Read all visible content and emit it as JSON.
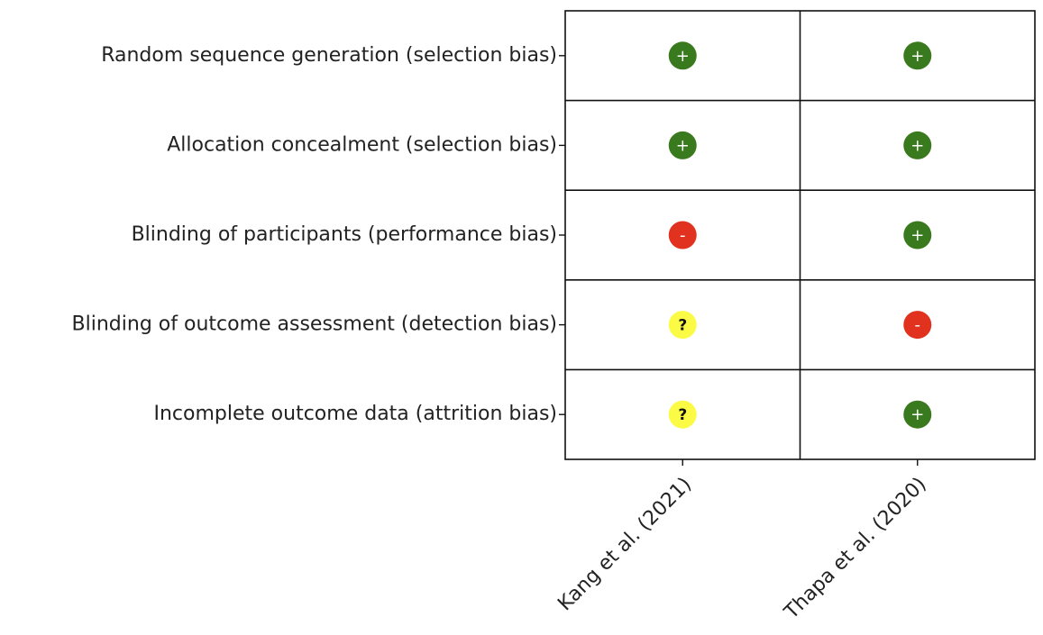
{
  "chart_data": {
    "type": "table",
    "rows": [
      "Random sequence generation (selection bias)",
      "Allocation concealment (selection bias)",
      "Blinding of participants (performance bias)",
      "Blinding of outcome assessment (detection bias)",
      "Incomplete outcome data (attrition bias)"
    ],
    "columns": [
      "Kang et al. (2021)",
      "Thapa et al. (2020)"
    ],
    "values": [
      [
        "low",
        "low"
      ],
      [
        "low",
        "low"
      ],
      [
        "high",
        "low"
      ],
      [
        "unclear",
        "high"
      ],
      [
        "unclear",
        "low"
      ]
    ],
    "levels": {
      "low": {
        "symbol": "+",
        "color": "#3a7a1e"
      },
      "high": {
        "symbol": "-",
        "color": "#e0321e"
      },
      "unclear": {
        "symbol": "?",
        "color": "#fbfb45"
      }
    }
  }
}
